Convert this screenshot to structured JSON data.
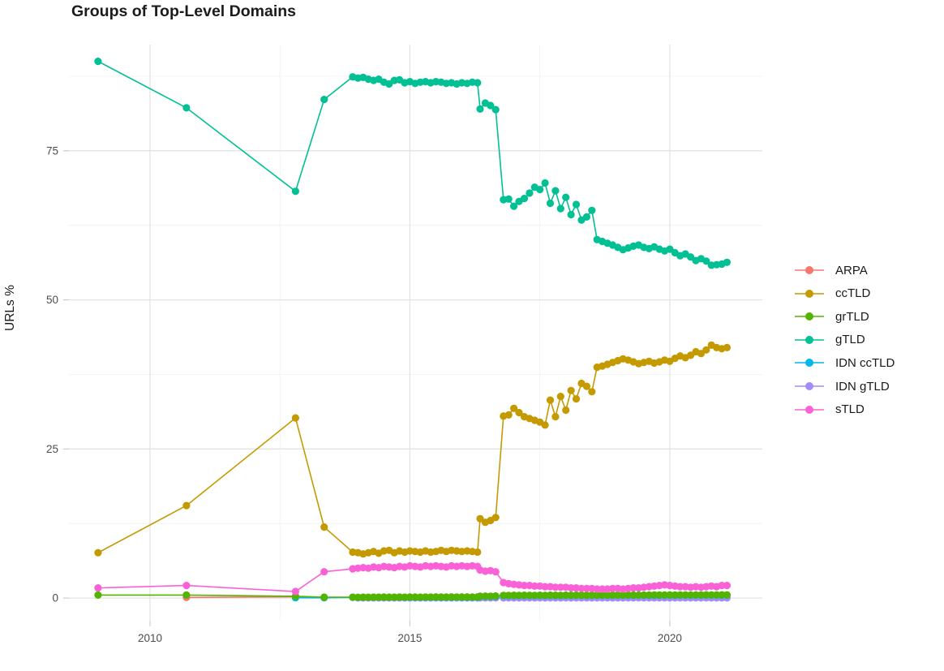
{
  "title": "Groups of Top-Level Domains",
  "ylabel": "URLs %",
  "chart_data": {
    "type": "line",
    "title": "Groups of Top-Level Domains",
    "ylabel": "URLs %",
    "xlabel": "",
    "legend_position": "right",
    "grid": true,
    "x_axis": {
      "ticks": [
        2010,
        2015,
        2020
      ],
      "tick_labels": [
        "2010",
        "2015",
        "2020"
      ],
      "minor": [
        2012.5,
        2017.5
      ],
      "range": [
        2008.44,
        2021.78
      ]
    },
    "y_axis": {
      "ticks": [
        0,
        25,
        50,
        75
      ],
      "tick_labels": [
        "0",
        "25",
        "50",
        "75"
      ],
      "minor": [
        12.5,
        37.5,
        62.5,
        87.5
      ],
      "range": [
        -3.8,
        92.8
      ]
    },
    "x": [
      2009.0,
      2010.7,
      2012.8,
      2013.35,
      2013.9,
      2014.0,
      2014.1,
      2014.2,
      2014.3,
      2014.4,
      2014.5,
      2014.6,
      2014.7,
      2014.8,
      2014.9,
      2015.0,
      2015.1,
      2015.2,
      2015.3,
      2015.4,
      2015.5,
      2015.6,
      2015.7,
      2015.8,
      2015.9,
      2016.0,
      2016.1,
      2016.2,
      2016.3,
      2016.35,
      2016.45,
      2016.55,
      2016.65,
      2016.8,
      2016.9,
      2017.0,
      2017.1,
      2017.2,
      2017.3,
      2017.4,
      2017.5,
      2017.6,
      2017.7,
      2017.8,
      2017.9,
      2018.0,
      2018.1,
      2018.2,
      2018.3,
      2018.4,
      2018.5,
      2018.6,
      2018.7,
      2018.8,
      2018.9,
      2019.0,
      2019.1,
      2019.2,
      2019.3,
      2019.4,
      2019.5,
      2019.6,
      2019.7,
      2019.8,
      2019.9,
      2020.0,
      2020.1,
      2020.2,
      2020.3,
      2020.4,
      2020.5,
      2020.6,
      2020.7,
      2020.8,
      2020.9,
      2021.0,
      2021.1
    ],
    "draw_order": [
      "ARPA",
      "IDN gTLD",
      "IDN ccTLD",
      "grTLD",
      "sTLD",
      "ccTLD",
      "gTLD"
    ],
    "series": [
      {
        "name": "ARPA",
        "color": "#F8766D",
        "points": [
          [
            2010.7,
            0.1
          ],
          [
            2012.8,
            0.2
          ]
        ]
      },
      {
        "name": "ccTLD",
        "color": "#C49A00",
        "values": [
          7.6,
          15.5,
          30.2,
          11.9,
          7.7,
          7.6,
          7.4,
          7.6,
          7.8,
          7.5,
          7.9,
          8.0,
          7.6,
          7.9,
          7.7,
          7.9,
          7.8,
          7.7,
          7.9,
          7.7,
          7.8,
          8.0,
          7.8,
          8.0,
          7.9,
          7.8,
          7.9,
          7.8,
          7.7,
          13.3,
          12.7,
          13.0,
          13.5,
          30.5,
          30.7,
          31.8,
          31.1,
          30.4,
          30.1,
          29.8,
          29.5,
          29.0,
          33.2,
          30.4,
          33.8,
          31.5,
          34.8,
          33.4,
          36.0,
          35.5,
          34.6,
          38.7,
          38.9,
          39.2,
          39.5,
          39.8,
          40.1,
          39.9,
          39.6,
          39.3,
          39.5,
          39.7,
          39.4,
          39.6,
          39.9,
          39.7,
          40.2,
          40.6,
          40.3,
          40.7,
          41.3,
          41.0,
          41.6,
          42.4,
          42.0,
          41.8,
          42.0
        ]
      },
      {
        "name": "grTLD",
        "color": "#53B400",
        "values": [
          0.5,
          0.5,
          0.3,
          0.15,
          0.15,
          0.12,
          0.14,
          0.13,
          0.15,
          0.14,
          0.16,
          0.15,
          0.14,
          0.16,
          0.15,
          0.17,
          0.16,
          0.15,
          0.17,
          0.16,
          0.18,
          0.17,
          0.16,
          0.18,
          0.17,
          0.19,
          0.18,
          0.17,
          0.19,
          0.3,
          0.32,
          0.31,
          0.33,
          0.45,
          0.44,
          0.46,
          0.45,
          0.47,
          0.46,
          0.45,
          0.47,
          0.46,
          0.48,
          0.47,
          0.46,
          0.48,
          0.47,
          0.49,
          0.48,
          0.47,
          0.49,
          0.48,
          0.5,
          0.49,
          0.48,
          0.5,
          0.49,
          0.51,
          0.5,
          0.49,
          0.51,
          0.5,
          0.52,
          0.51,
          0.5,
          0.52,
          0.51,
          0.53,
          0.52,
          0.51,
          0.53,
          0.52,
          0.54,
          0.53,
          0.52,
          0.54,
          0.53
        ]
      },
      {
        "name": "gTLD",
        "color": "#00C094",
        "values": [
          90.0,
          82.2,
          68.2,
          83.6,
          87.4,
          87.2,
          87.3,
          87.0,
          86.8,
          87.0,
          86.5,
          86.2,
          86.8,
          86.9,
          86.4,
          86.6,
          86.3,
          86.5,
          86.6,
          86.4,
          86.6,
          86.5,
          86.3,
          86.4,
          86.2,
          86.4,
          86.3,
          86.5,
          86.4,
          82.0,
          83.0,
          82.6,
          81.9,
          66.8,
          66.9,
          65.7,
          66.5,
          67.0,
          67.9,
          68.9,
          68.5,
          69.6,
          66.2,
          68.3,
          65.3,
          67.2,
          64.3,
          66.0,
          63.4,
          63.9,
          65.0,
          60.1,
          59.8,
          59.5,
          59.2,
          58.8,
          58.4,
          58.7,
          59.0,
          59.2,
          58.8,
          58.6,
          58.9,
          58.5,
          58.2,
          58.5,
          57.9,
          57.4,
          57.7,
          57.2,
          56.6,
          56.9,
          56.5,
          55.8,
          55.9,
          56.0,
          56.3
        ]
      },
      {
        "name": "IDN ccTLD",
        "color": "#00B6EB",
        "values": [
          null,
          null,
          0.05,
          0.05,
          0.1,
          0.1,
          0.1,
          0.1,
          0.1,
          0.1,
          0.1,
          0.1,
          0.1,
          0.1,
          0.1,
          0.1,
          0.1,
          0.1,
          0.1,
          0.1,
          0.1,
          0.1,
          0.1,
          0.1,
          0.1,
          0.1,
          0.1,
          0.1,
          0.1,
          0.25,
          0.25,
          0.25,
          0.25,
          0.4,
          0.39,
          0.41,
          0.4,
          0.42,
          0.41,
          0.4,
          0.42,
          0.41,
          0.43,
          0.42,
          0.41,
          0.43,
          0.42,
          0.44,
          0.43,
          0.42,
          0.44,
          0.43,
          0.45,
          0.44,
          0.43,
          0.45,
          0.44,
          0.46,
          0.45,
          0.44,
          0.46,
          0.45,
          0.47,
          0.46,
          0.45,
          0.47,
          0.46,
          0.48,
          0.47,
          0.46,
          0.48,
          0.47,
          0.49,
          0.48,
          0.47,
          0.49,
          0.48
        ]
      },
      {
        "name": "IDN gTLD",
        "color": "#A58AFF",
        "values": [
          null,
          null,
          null,
          null,
          null,
          0.02,
          0.02,
          0.02,
          0.02,
          0.02,
          0.02,
          0.02,
          0.02,
          0.02,
          0.02,
          0.02,
          0.02,
          0.02,
          0.02,
          0.02,
          0.02,
          0.02,
          0.02,
          0.02,
          0.02,
          0.02,
          0.02,
          0.02,
          0.02,
          0.02,
          0.02,
          0.02,
          0.02,
          0.02,
          0.02,
          0.02,
          0.02,
          0.02,
          0.02,
          0.02,
          0.02,
          0.02,
          0.02,
          0.02,
          0.02,
          0.02,
          0.02,
          0.02,
          0.02,
          0.02,
          0.02,
          0.02,
          0.02,
          0.02,
          0.02,
          0.02,
          0.02,
          0.02,
          0.02,
          0.02,
          0.02,
          0.02,
          0.02,
          0.02,
          0.02,
          0.02,
          0.02,
          0.02,
          0.02,
          0.02,
          0.02,
          0.02,
          0.02,
          0.02,
          0.02,
          0.02,
          0.02
        ]
      },
      {
        "name": "sTLD",
        "color": "#FB61D7",
        "values": [
          1.7,
          2.1,
          1.1,
          4.4,
          4.9,
          5.0,
          5.1,
          5.0,
          5.2,
          5.1,
          5.3,
          5.2,
          5.1,
          5.3,
          5.2,
          5.4,
          5.3,
          5.2,
          5.4,
          5.3,
          5.4,
          5.3,
          5.2,
          5.4,
          5.3,
          5.4,
          5.3,
          5.4,
          5.3,
          4.7,
          4.5,
          4.6,
          4.4,
          2.6,
          2.4,
          2.3,
          2.2,
          2.1,
          2.1,
          2.0,
          2.0,
          1.9,
          1.9,
          1.8,
          1.8,
          1.8,
          1.7,
          1.7,
          1.6,
          1.6,
          1.6,
          1.5,
          1.5,
          1.5,
          1.6,
          1.6,
          1.5,
          1.6,
          1.7,
          1.7,
          1.8,
          1.9,
          2.0,
          2.1,
          2.2,
          2.1,
          2.0,
          1.9,
          1.9,
          1.8,
          1.9,
          1.8,
          1.9,
          2.0,
          1.9,
          2.1,
          2.1
        ]
      }
    ]
  }
}
